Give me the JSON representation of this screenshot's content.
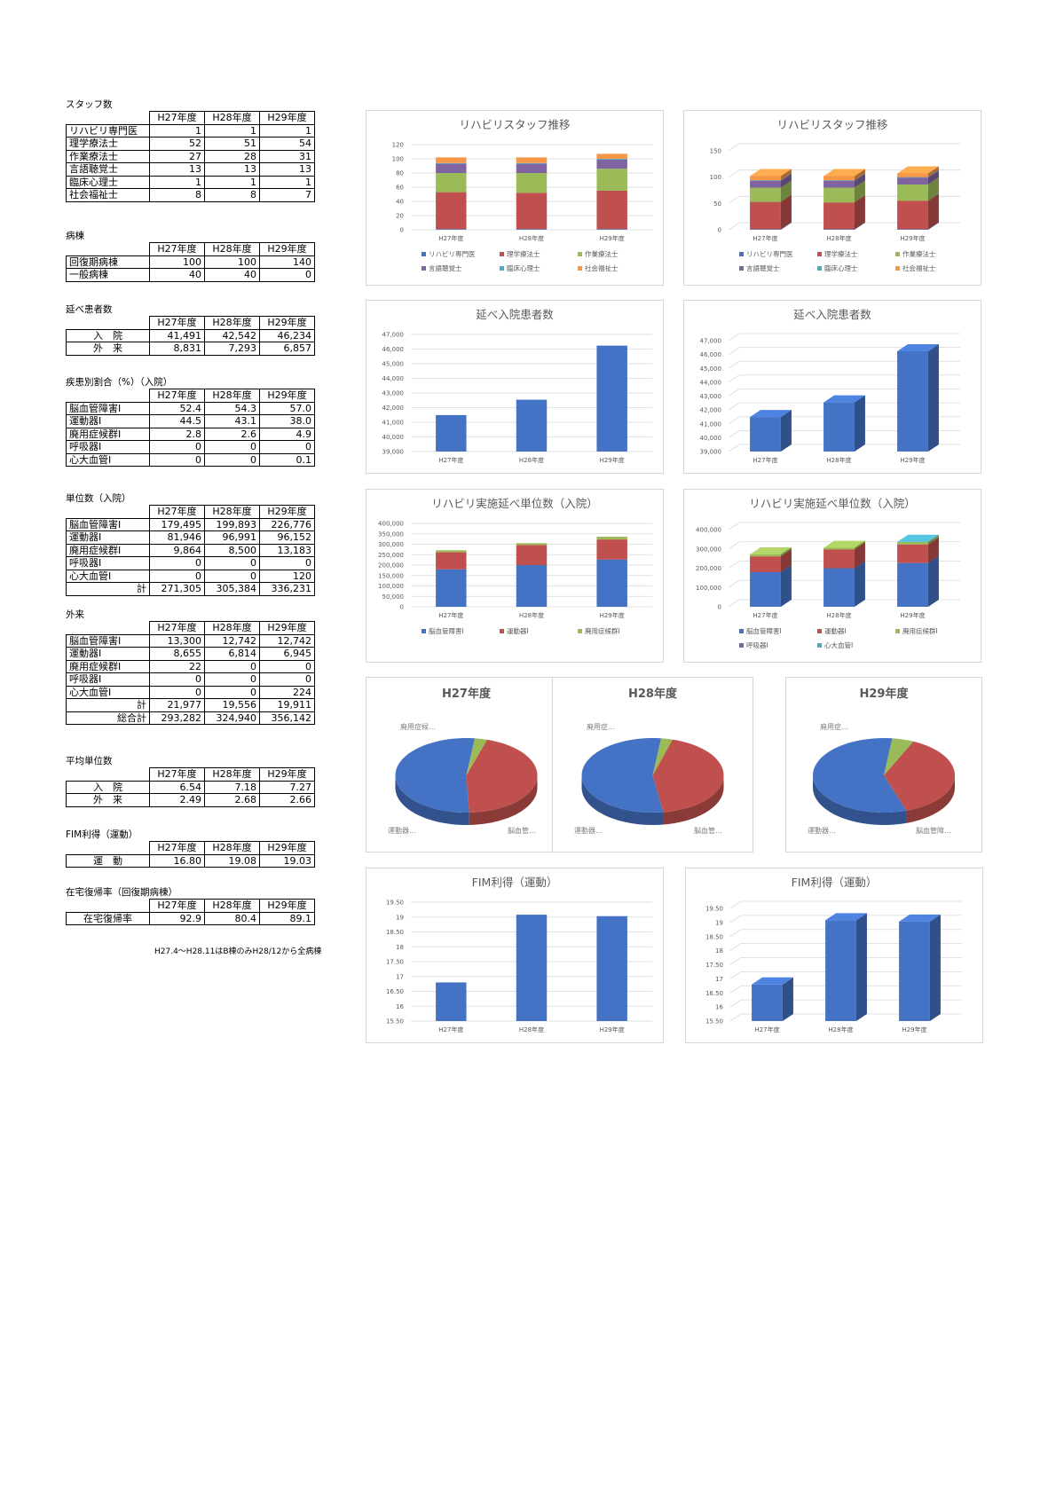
{
  "headers": [
    "H27年度",
    "H28年度",
    "H29年度"
  ],
  "staff": {
    "title": "スタッフ数",
    "rows": [
      {
        "label": "リハビリ専門医",
        "values": [
          "1",
          "1",
          "1"
        ]
      },
      {
        "label": "理学療法士",
        "values": [
          "52",
          "51",
          "54"
        ]
      },
      {
        "label": "作業療法士",
        "values": [
          "27",
          "28",
          "31"
        ]
      },
      {
        "label": "言語聴覚士",
        "values": [
          "13",
          "13",
          "13"
        ]
      },
      {
        "label": "臨床心理士",
        "values": [
          "1",
          "1",
          "1"
        ]
      },
      {
        "label": "社会福祉士",
        "values": [
          "8",
          "8",
          "7"
        ]
      }
    ]
  },
  "ward": {
    "title": "病棟",
    "rows": [
      {
        "label": "回復期病棟",
        "values": [
          "100",
          "100",
          "140"
        ]
      },
      {
        "label": "一般病棟",
        "values": [
          "40",
          "40",
          "0"
        ]
      }
    ]
  },
  "patients": {
    "title": "延べ患者数",
    "rows": [
      {
        "label": "入　院",
        "values": [
          "41,491",
          "42,542",
          "46,234"
        ]
      },
      {
        "label": "外　来",
        "values": [
          "8,831",
          "7,293",
          "6,857"
        ]
      }
    ]
  },
  "disease": {
    "title": "疾患別割合（%）（入院）",
    "rows": [
      {
        "label": "脳血管障害Ⅰ",
        "values": [
          "52.4",
          "54.3",
          "57.0"
        ]
      },
      {
        "label": "運動器Ⅰ",
        "values": [
          "44.5",
          "43.1",
          "38.0"
        ]
      },
      {
        "label": "廃用症候群Ⅰ",
        "values": [
          "2.8",
          "2.6",
          "4.9"
        ]
      },
      {
        "label": "呼吸器Ⅰ",
        "values": [
          "0",
          "0",
          "0"
        ]
      },
      {
        "label": "心大血管Ⅰ",
        "values": [
          "0",
          "0",
          "0.1"
        ]
      }
    ]
  },
  "units_in": {
    "title": "単位数（入院）",
    "rows": [
      {
        "label": "脳血管障害Ⅰ",
        "values": [
          "179,495",
          "199,893",
          "226,776"
        ]
      },
      {
        "label": "運動器Ⅰ",
        "values": [
          "81,946",
          "96,991",
          "96,152"
        ]
      },
      {
        "label": "廃用症候群Ⅰ",
        "values": [
          "9,864",
          "8,500",
          "13,183"
        ]
      },
      {
        "label": "呼吸器Ⅰ",
        "values": [
          "0",
          "0",
          "0"
        ]
      },
      {
        "label": "心大血管Ⅰ",
        "values": [
          "0",
          "0",
          "120"
        ]
      }
    ],
    "total": {
      "label": "計",
      "values": [
        "271,305",
        "305,384",
        "336,231"
      ]
    }
  },
  "units_out": {
    "title": "外来",
    "rows": [
      {
        "label": "脳血管障害Ⅰ",
        "values": [
          "13,300",
          "12,742",
          "12,742"
        ]
      },
      {
        "label": "運動器Ⅰ",
        "values": [
          "8,655",
          "6,814",
          "6,945"
        ]
      },
      {
        "label": "廃用症候群Ⅰ",
        "values": [
          "22",
          "0",
          "0"
        ]
      },
      {
        "label": "呼吸器Ⅰ",
        "values": [
          "0",
          "0",
          "0"
        ]
      },
      {
        "label": "心大血管Ⅰ",
        "values": [
          "0",
          "0",
          "224"
        ]
      }
    ],
    "total": {
      "label": "計",
      "values": [
        "21,977",
        "19,556",
        "19,911"
      ]
    },
    "grand": {
      "label": "総合計",
      "values": [
        "293,282",
        "324,940",
        "356,142"
      ]
    }
  },
  "avg_units": {
    "title": "平均単位数",
    "rows": [
      {
        "label": "入　院",
        "values": [
          "6.54",
          "7.18",
          "7.27"
        ]
      },
      {
        "label": "外　来",
        "values": [
          "2.49",
          "2.68",
          "2.66"
        ]
      }
    ]
  },
  "fim": {
    "title": "FIM利得（運動）",
    "rows": [
      {
        "label": "運　動",
        "values": [
          "16.80",
          "19.08",
          "19.03"
        ]
      }
    ]
  },
  "home": {
    "title": "在宅復帰率（回復期病棟）",
    "rows": [
      {
        "label": "在宅復帰率",
        "values": [
          "92.9",
          "80.4",
          "89.1"
        ]
      }
    ]
  },
  "note": "H27.4～H28.11はB棟のみH28/12から全病棟",
  "chart_data": [
    {
      "id": "staff-2d",
      "type": "bar",
      "stacked": true,
      "title": "リハビリスタッフ推移",
      "categories": [
        "H27年度",
        "H28年度",
        "H29年度"
      ],
      "ylim": [
        0,
        120
      ],
      "yticks": [
        0,
        20,
        40,
        60,
        80,
        100,
        120
      ],
      "series": [
        {
          "name": "リハビリ専門医",
          "values": [
            1,
            1,
            1
          ],
          "color": "#4472c4"
        },
        {
          "name": "理学療法士",
          "values": [
            52,
            51,
            54
          ],
          "color": "#c0504d"
        },
        {
          "name": "作業療法士",
          "values": [
            27,
            28,
            31
          ],
          "color": "#9bbb59"
        },
        {
          "name": "言語聴覚士",
          "values": [
            13,
            13,
            13
          ],
          "color": "#8064a2"
        },
        {
          "name": "臨床心理士",
          "values": [
            1,
            1,
            1
          ],
          "color": "#4bacc6"
        },
        {
          "name": "社会福祉士",
          "values": [
            8,
            8,
            7
          ],
          "color": "#f79646"
        }
      ],
      "legend": "bottom"
    },
    {
      "id": "staff-3d",
      "type": "bar",
      "stacked": true,
      "title": "リハビリスタッフ推移",
      "categories": [
        "H27年度",
        "H28年度",
        "H29年度"
      ],
      "ylim": [
        0,
        150
      ],
      "yticks": [
        0,
        50,
        100,
        150
      ],
      "series": [
        {
          "name": "リハビリ専門医",
          "values": [
            1,
            1,
            1
          ],
          "color": "#4472c4"
        },
        {
          "name": "理学療法士",
          "values": [
            52,
            51,
            54
          ],
          "color": "#c0504d"
        },
        {
          "name": "作業療法士",
          "values": [
            27,
            28,
            31
          ],
          "color": "#9bbb59"
        },
        {
          "name": "言語聴覚士",
          "values": [
            13,
            13,
            13
          ],
          "color": "#8064a2"
        },
        {
          "name": "臨床心理士",
          "values": [
            1,
            1,
            1
          ],
          "color": "#4bacc6"
        },
        {
          "name": "社会福祉士",
          "values": [
            8,
            8,
            7
          ],
          "color": "#f79646"
        }
      ],
      "legend": "bottom"
    },
    {
      "id": "patients-2d",
      "type": "bar",
      "title": "延べ入院患者数",
      "categories": [
        "H27年度",
        "H28年度",
        "H29年度"
      ],
      "ylim": [
        39000,
        47000
      ],
      "yticks": [
        39000,
        40000,
        41000,
        42000,
        43000,
        44000,
        45000,
        46000,
        47000
      ],
      "series": [
        {
          "name": "",
          "values": [
            41491,
            42542,
            46234
          ],
          "color": "#4472c4"
        }
      ]
    },
    {
      "id": "patients-3d",
      "type": "bar",
      "title": "延べ入院患者数",
      "categories": [
        "H27年度",
        "H28年度",
        "H29年度"
      ],
      "ylim": [
        39000,
        47000
      ],
      "yticks": [
        39000,
        40000,
        41000,
        42000,
        43000,
        44000,
        45000,
        46000,
        47000
      ],
      "series": [
        {
          "name": "",
          "values": [
            41491,
            42542,
            46234
          ],
          "color": "#4472c4"
        }
      ]
    },
    {
      "id": "units-2d",
      "type": "bar",
      "stacked": true,
      "title": "リハビリ実施延べ単位数（入院）",
      "categories": [
        "H27年度",
        "H28年度",
        "H29年度"
      ],
      "ylim": [
        0,
        400000
      ],
      "yticks": [
        0,
        50000,
        100000,
        150000,
        200000,
        250000,
        300000,
        350000,
        400000
      ],
      "series": [
        {
          "name": "脳血管障害Ⅰ",
          "values": [
            179495,
            199893,
            226776
          ],
          "color": "#4472c4"
        },
        {
          "name": "運動器Ⅰ",
          "values": [
            81946,
            96991,
            96152
          ],
          "color": "#c0504d"
        },
        {
          "name": "廃用症候群Ⅰ",
          "values": [
            9864,
            8500,
            13183
          ],
          "color": "#9bbb59"
        }
      ],
      "legend": "bottom"
    },
    {
      "id": "units-3d",
      "type": "bar",
      "stacked": true,
      "title": "リハビリ実施延べ単位数（入院）",
      "categories": [
        "H27年度",
        "H28年度",
        "H29年度"
      ],
      "ylim": [
        0,
        400000
      ],
      "yticks": [
        0,
        100000,
        200000,
        300000,
        400000
      ],
      "series": [
        {
          "name": "脳血管障害Ⅰ",
          "values": [
            179495,
            199893,
            226776
          ],
          "color": "#4472c4"
        },
        {
          "name": "運動器Ⅰ",
          "values": [
            81946,
            96991,
            96152
          ],
          "color": "#c0504d"
        },
        {
          "name": "廃用症候群Ⅰ",
          "values": [
            9864,
            8500,
            13183
          ],
          "color": "#9bbb59"
        },
        {
          "name": "呼吸器Ⅰ",
          "values": [
            0,
            0,
            0
          ],
          "color": "#8064a2"
        },
        {
          "name": "心大血管Ⅰ",
          "values": [
            0,
            0,
            120
          ],
          "color": "#4bacc6"
        }
      ],
      "legend": "bottom"
    },
    {
      "id": "pie-h27",
      "type": "pie",
      "title": "H27年度",
      "slices": [
        {
          "label": "脳血管…",
          "value": 52.4,
          "color": "#4472c4"
        },
        {
          "label": "運動器…",
          "value": 44.5,
          "color": "#c0504d"
        },
        {
          "label": "廃用症候…",
          "value": 2.8,
          "color": "#9bbb59"
        }
      ]
    },
    {
      "id": "pie-h28",
      "type": "pie",
      "title": "H28年度",
      "slices": [
        {
          "label": "脳血管…",
          "value": 54.3,
          "color": "#4472c4"
        },
        {
          "label": "運動器…",
          "value": 43.1,
          "color": "#c0504d"
        },
        {
          "label": "廃用症…",
          "value": 2.6,
          "color": "#9bbb59"
        }
      ]
    },
    {
      "id": "pie-h29",
      "type": "pie",
      "title": "H29年度",
      "slices": [
        {
          "label": "脳血管障…",
          "value": 57.0,
          "color": "#4472c4"
        },
        {
          "label": "運動器…",
          "value": 38.0,
          "color": "#c0504d"
        },
        {
          "label": "廃用症…",
          "value": 4.9,
          "color": "#9bbb59"
        }
      ]
    },
    {
      "id": "fim-2d",
      "type": "bar",
      "title": "FIM利得（運動）",
      "categories": [
        "H27年度",
        "H28年度",
        "H29年度"
      ],
      "ylim": [
        15.5,
        19.5
      ],
      "yticks": [
        15.5,
        16,
        16.5,
        17,
        17.5,
        18,
        18.5,
        19,
        19.5
      ],
      "series": [
        {
          "name": "",
          "values": [
            16.8,
            19.08,
            19.03
          ],
          "color": "#4472c4"
        }
      ]
    },
    {
      "id": "fim-3d",
      "type": "bar",
      "title": "FIM利得（運動）",
      "categories": [
        "H27年度",
        "H28年度",
        "H29年度"
      ],
      "ylim": [
        15.5,
        19.5
      ],
      "yticks": [
        15.5,
        16,
        16.5,
        17,
        17.5,
        18,
        18.5,
        19,
        19.5
      ],
      "series": [
        {
          "name": "",
          "values": [
            16.8,
            19.08,
            19.03
          ],
          "color": "#4472c4"
        }
      ]
    }
  ]
}
